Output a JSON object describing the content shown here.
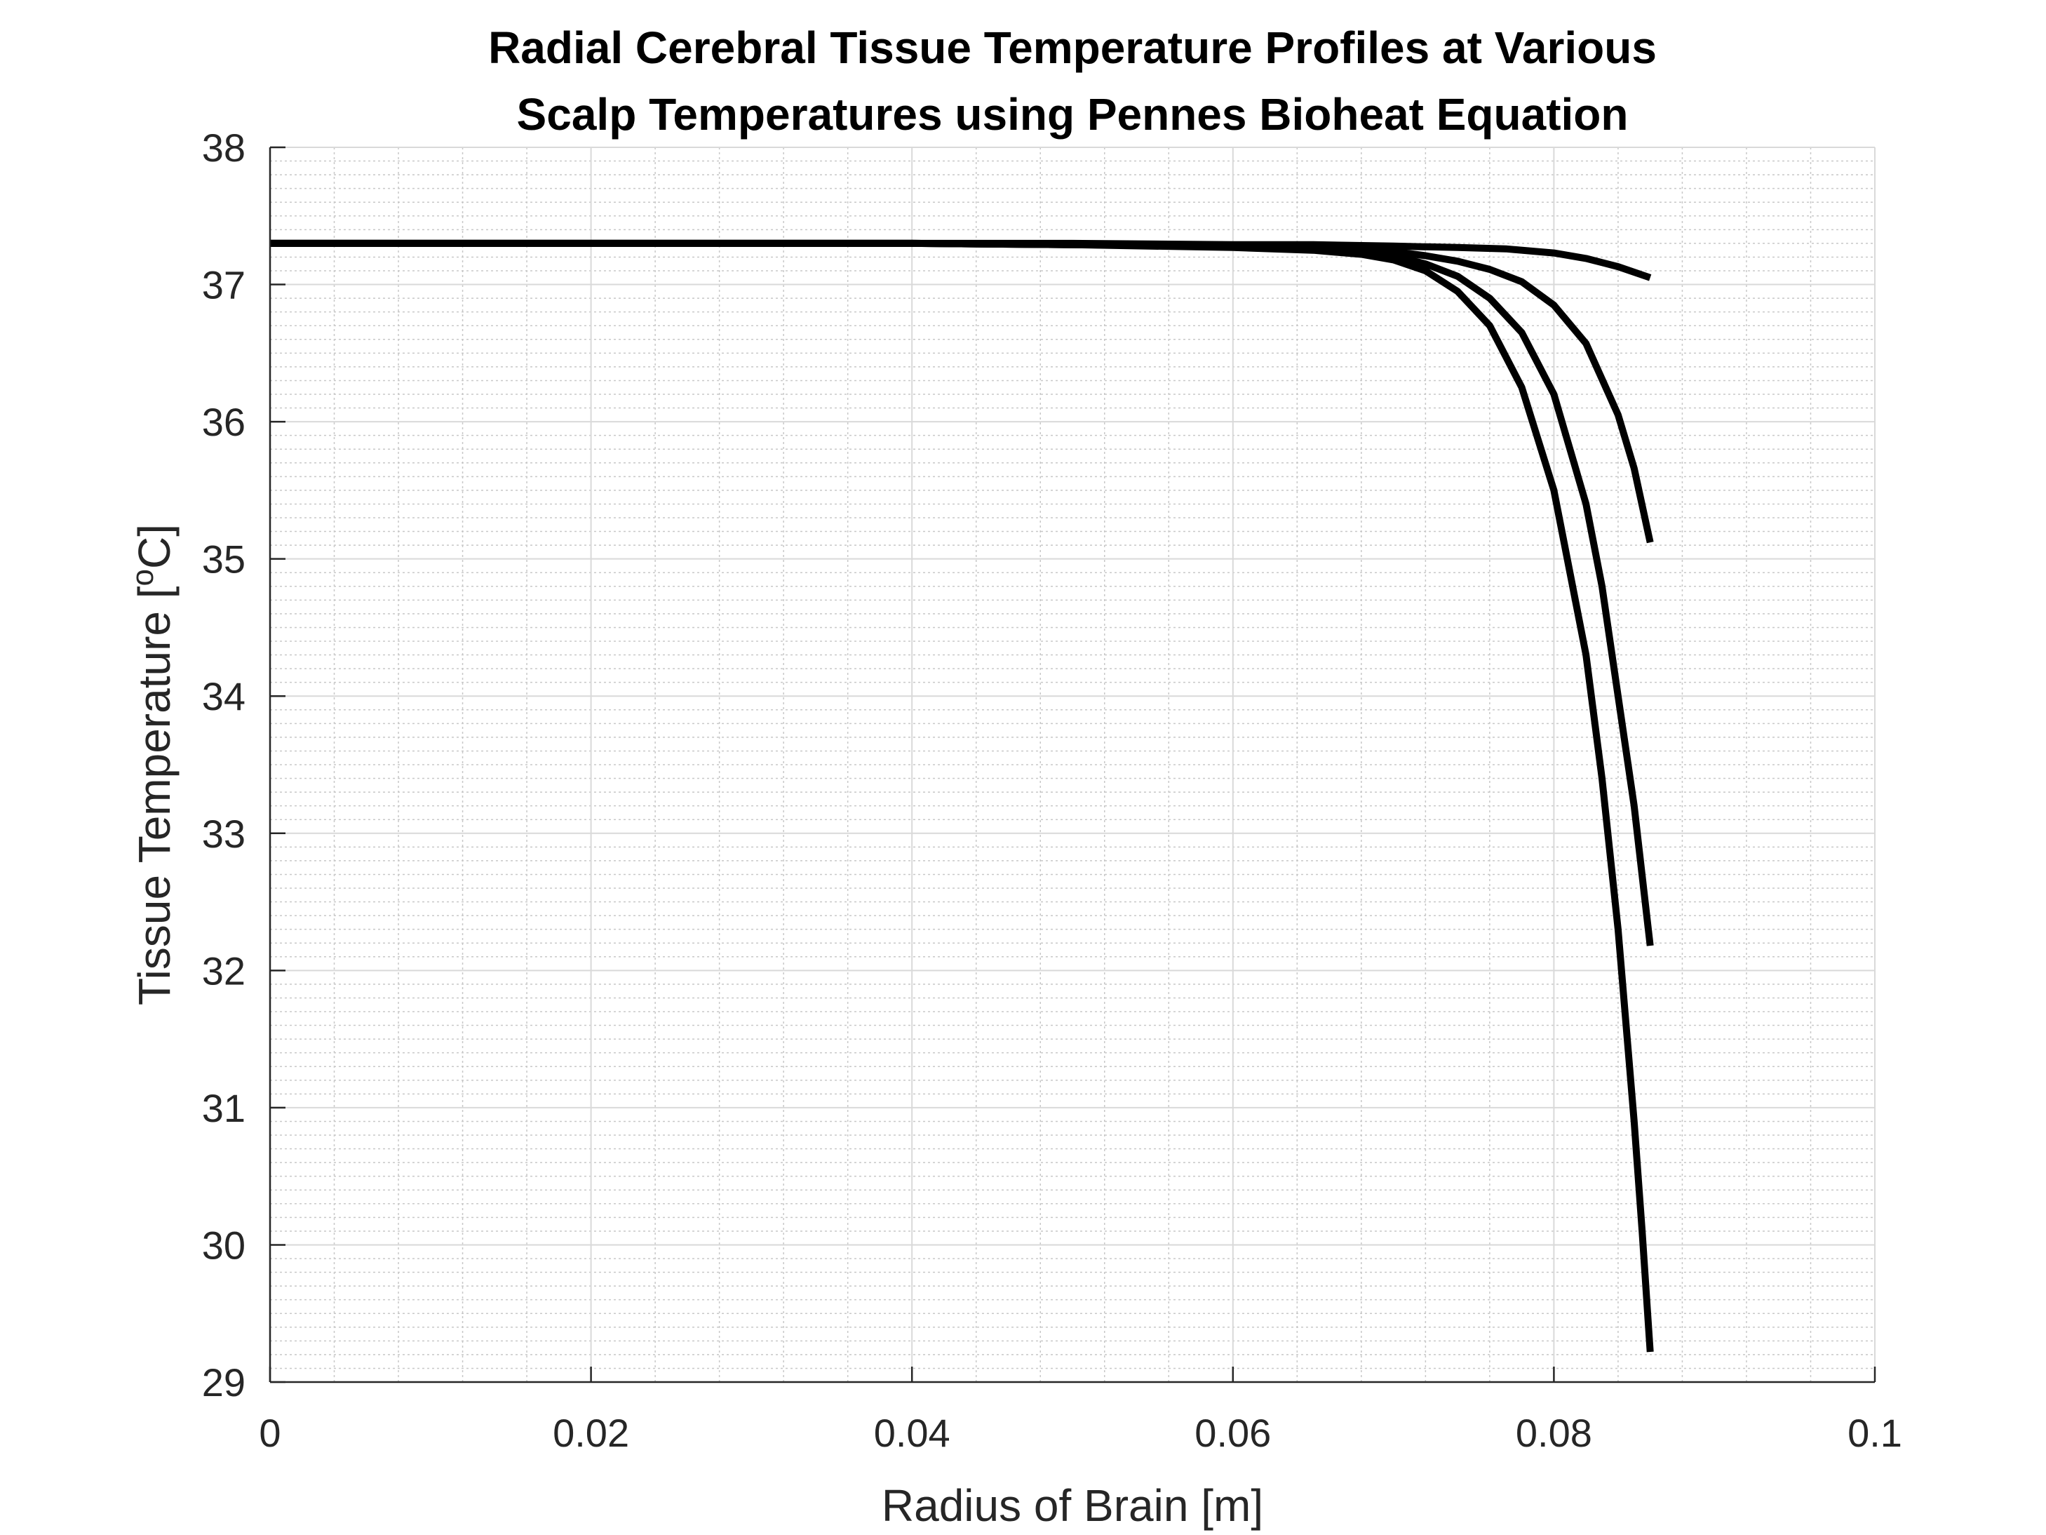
{
  "chart_data": {
    "type": "line",
    "title_lines": [
      "Radial Cerebral Tissue Temperature Profiles at Various",
      "Scalp Temperatures using Pennes Bioheat Equation"
    ],
    "xlabel": "Radius of Brain [m]",
    "ylabel": {
      "before": "Tissue Temperature [",
      "sup": "o",
      "after": "C]"
    },
    "xlim": [
      0,
      0.1
    ],
    "ylim": [
      29,
      38
    ],
    "x_ticks": [
      0,
      0.02,
      0.04,
      0.06,
      0.08,
      0.1
    ],
    "x_tick_labels": [
      "0",
      "0.02",
      "0.04",
      "0.06",
      "0.08",
      "0.1"
    ],
    "y_ticks": [
      29,
      30,
      31,
      32,
      33,
      34,
      35,
      36,
      37,
      38
    ],
    "y_tick_labels": [
      "29",
      "30",
      "31",
      "32",
      "33",
      "34",
      "35",
      "36",
      "37",
      "38"
    ],
    "grid": true,
    "minor_grid": true,
    "line_color": "#000000",
    "series": [
      {
        "x": [
          0,
          0.02,
          0.04,
          0.05,
          0.06,
          0.065,
          0.07,
          0.074,
          0.077,
          0.08,
          0.082,
          0.084,
          0.086
        ],
        "y": [
          37.3,
          37.3,
          37.3,
          37.3,
          37.29,
          37.29,
          37.28,
          37.27,
          37.26,
          37.23,
          37.19,
          37.13,
          37.05
        ]
      },
      {
        "x": [
          0,
          0.02,
          0.04,
          0.05,
          0.06,
          0.065,
          0.07,
          0.072,
          0.074,
          0.076,
          0.078,
          0.08,
          0.082,
          0.084,
          0.085,
          0.086
        ],
        "y": [
          37.3,
          37.3,
          37.3,
          37.29,
          37.28,
          37.27,
          37.24,
          37.21,
          37.17,
          37.11,
          37.02,
          36.85,
          36.57,
          36.05,
          35.66,
          35.12
        ]
      },
      {
        "x": [
          0,
          0.02,
          0.04,
          0.05,
          0.06,
          0.065,
          0.068,
          0.07,
          0.072,
          0.074,
          0.076,
          0.078,
          0.08,
          0.082,
          0.083,
          0.084,
          0.085,
          0.086
        ],
        "y": [
          37.3,
          37.3,
          37.3,
          37.29,
          37.28,
          37.26,
          37.24,
          37.21,
          37.15,
          37.06,
          36.9,
          36.65,
          36.2,
          35.4,
          34.8,
          34.0,
          33.2,
          32.18
        ]
      },
      {
        "x": [
          0,
          0.02,
          0.04,
          0.05,
          0.06,
          0.065,
          0.068,
          0.07,
          0.072,
          0.074,
          0.076,
          0.078,
          0.08,
          0.082,
          0.083,
          0.084,
          0.085,
          0.0855,
          0.086
        ],
        "y": [
          37.3,
          37.3,
          37.3,
          37.29,
          37.27,
          37.25,
          37.22,
          37.18,
          37.1,
          36.95,
          36.7,
          36.25,
          35.5,
          34.3,
          33.4,
          32.3,
          30.9,
          30.1,
          29.22
        ]
      }
    ]
  }
}
